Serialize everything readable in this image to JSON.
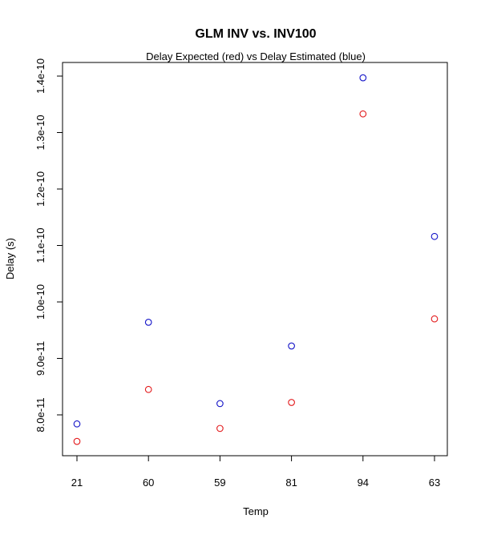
{
  "chart_data": {
    "type": "scatter",
    "title": "GLM INV vs. INV100",
    "subtitle": "Delay Expected (red) vs Delay Estimated (blue)",
    "xlabel": "Temp",
    "ylabel": "Delay (s)",
    "categories": [
      "21",
      "60",
      "59",
      "81",
      "94",
      "63"
    ],
    "ylim": [
      7.3e-11,
      1.42e-10
    ],
    "yticks": [
      8e-11,
      9e-11,
      1e-10,
      1.1e-10,
      1.2e-10,
      1.3e-10,
      1.4e-10
    ],
    "ytick_labels": [
      "8.0e-11",
      "9.0e-11",
      "1.0e-10",
      "1.1e-10",
      "1.2e-10",
      "1.3e-10",
      "1.4e-10"
    ],
    "grid": false,
    "series": [
      {
        "name": "Delay Expected",
        "color": "#e31a1c",
        "marker": "open-circle",
        "values": [
          7.53e-11,
          8.45e-11,
          7.76e-11,
          8.22e-11,
          1.333e-10,
          9.7e-11
        ]
      },
      {
        "name": "Delay Estimated",
        "color": "#1515c8",
        "marker": "open-circle",
        "values": [
          7.84e-11,
          9.64e-11,
          8.2e-11,
          9.22e-11,
          1.397e-10,
          1.116e-10
        ]
      }
    ]
  }
}
